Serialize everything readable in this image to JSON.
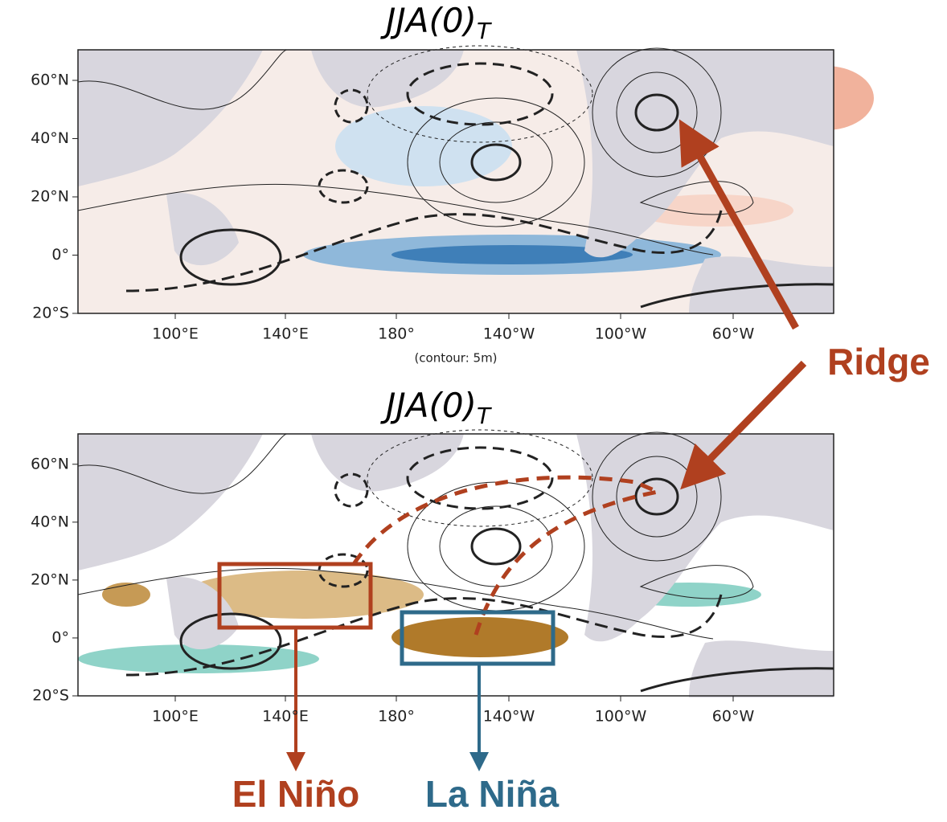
{
  "panels": [
    {
      "title": {
        "main": "JJA(0)",
        "sub": "T"
      },
      "lat_labels": [
        "60°N",
        "40°N",
        "20°N",
        "0°",
        "20°S"
      ],
      "lon_labels": [
        "100°E",
        "140°E",
        "180°",
        "140°W",
        "100°W",
        "60°W"
      ],
      "note": "(contour: 5m)"
    },
    {
      "title": {
        "main": "JJA(0)",
        "sub": "T"
      },
      "lat_labels": [
        "60°N",
        "40°N",
        "20°N",
        "0°",
        "20°S"
      ],
      "lon_labels": [
        "100°E",
        "140°E",
        "180°",
        "140°W",
        "100°W",
        "60°W"
      ]
    }
  ],
  "annotations": {
    "ridge": "Ridge",
    "el_nino": "El Niño",
    "la_nina": "La Niña"
  }
}
